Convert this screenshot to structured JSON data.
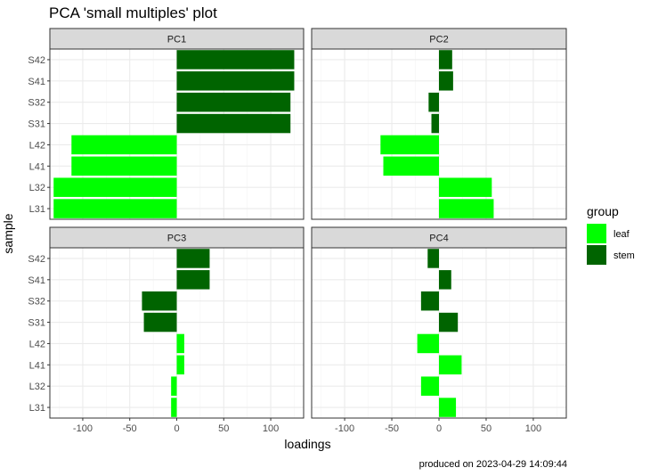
{
  "title": "PCA 'small multiples' plot",
  "caption": "produced on 2023-04-29 14:09:44",
  "colors": {
    "leaf": "#00ff00",
    "stem": "#006400",
    "strip_bg": "#d9d9d9",
    "panel_border": "#333333",
    "grid_major": "#ebebeb",
    "grid_minor": "#f5f5f5"
  },
  "chart_data": {
    "type": "bar",
    "orientation": "horizontal",
    "xlabel": "loadings",
    "ylabel": "sample",
    "xlim": [
      -135,
      135
    ],
    "xticks": [
      -100,
      -50,
      0,
      50,
      100
    ],
    "xtick_labels": [
      "-100",
      "-50",
      "0",
      "50",
      "100"
    ],
    "grid": true,
    "legend": {
      "title": "group",
      "position": "right",
      "items": [
        {
          "name": "leaf",
          "color": "#00ff00"
        },
        {
          "name": "stem",
          "color": "#006400"
        }
      ]
    },
    "categories": [
      "L31",
      "L32",
      "L41",
      "L42",
      "S31",
      "S32",
      "S41",
      "S42"
    ],
    "groups": [
      "leaf",
      "leaf",
      "leaf",
      "leaf",
      "stem",
      "stem",
      "stem",
      "stem"
    ],
    "panels": [
      {
        "name": "PC1",
        "values": [
          -131,
          -131,
          -112,
          -112,
          121,
          121,
          125,
          125
        ]
      },
      {
        "name": "PC2",
        "values": [
          58,
          56,
          -59,
          -62,
          -8,
          -11,
          15,
          14
        ]
      },
      {
        "name": "PC3",
        "values": [
          -6,
          -6,
          8,
          8,
          -35,
          -37,
          35,
          35
        ]
      },
      {
        "name": "PC4",
        "values": [
          18,
          -19,
          24,
          -23,
          20,
          -19,
          13,
          -12
        ]
      }
    ]
  }
}
